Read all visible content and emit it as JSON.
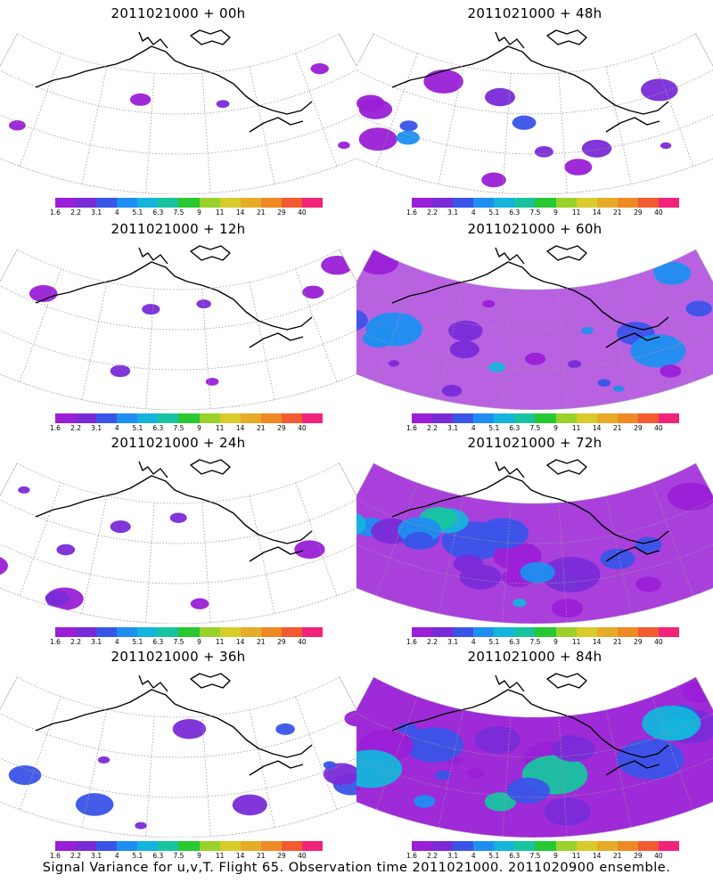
{
  "caption": "Signal Variance for u,v,T. Flight 65. Observation time 2011021000. 2011020900 ensemble.",
  "colorbar": {
    "colors": [
      "#9a1fd6",
      "#7a2bd8",
      "#3a54e8",
      "#1e8ff0",
      "#14b4dc",
      "#18c4a0",
      "#27c832",
      "#9ad22c",
      "#d8cc2a",
      "#e6ac28",
      "#ee8a24",
      "#f25a32",
      "#f2247a"
    ],
    "labels": [
      "1.6",
      "2.2",
      "3.1",
      "4",
      "5.1",
      "6.3",
      "7.5",
      "9",
      "11",
      "14",
      "21",
      "29",
      "40"
    ]
  },
  "panels": [
    {
      "title": "2011021000 + 00h",
      "coverage": 0.05
    },
    {
      "title": "2011021000 + 48h",
      "coverage": 0.4
    },
    {
      "title": "2011021000 + 12h",
      "coverage": 0.12
    },
    {
      "title": "2011021000 + 60h",
      "coverage": 0.6
    },
    {
      "title": "2011021000 + 24h",
      "coverage": 0.2
    },
    {
      "title": "2011021000 + 72h",
      "coverage": 0.75
    },
    {
      "title": "2011021000 + 36h",
      "coverage": 0.3
    },
    {
      "title": "2011021000 + 84h",
      "coverage": 0.85
    }
  ]
}
